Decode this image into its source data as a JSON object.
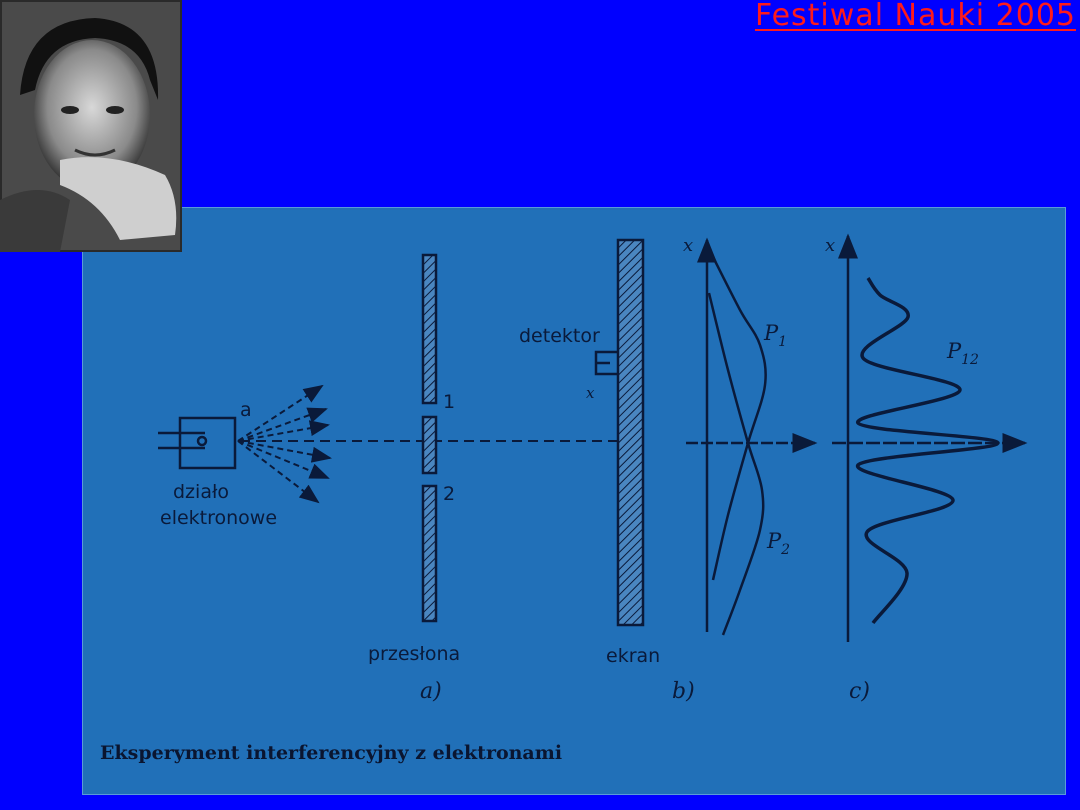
{
  "slide": {
    "header_title": "Festiwal Nauki 2005",
    "photo": "portrait-photo",
    "panel_color": "#2170b8",
    "title_color": "#ff1a1a",
    "background_color": "#0000ff"
  },
  "diagram": {
    "gun_label_line1": "działo",
    "gun_label_line2": "elektronowe",
    "source_label": "a",
    "slit1": "1",
    "slit2": "2",
    "barrier_label": "przesłona",
    "detector_label": "detektor",
    "detector_x": "x",
    "screen_label": "ekran",
    "axis_x_b": "x",
    "axis_x_c": "x",
    "p1": "P",
    "p1_sub": "1",
    "p2": "P",
    "p2_sub": "2",
    "p12": "P",
    "p12_sub": "12",
    "part_a": "a)",
    "part_b": "b)",
    "part_c": "c)"
  },
  "caption": "Eksperyment interferencyjny z elektronami"
}
